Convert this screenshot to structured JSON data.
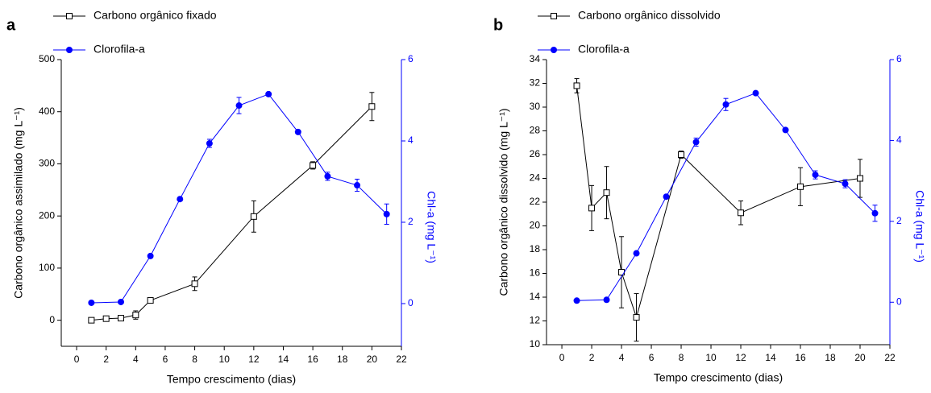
{
  "chart_data": [
    {
      "type": "line",
      "panel": "a",
      "x_label": "Tempo crescimento (dias)",
      "y_label": "Carbono orgânico assimilado (mg L⁻¹)",
      "y2_label": "Chl-a (mg L⁻¹)",
      "xlim": [
        -1.04,
        22
      ],
      "xticks": [
        0,
        2,
        4,
        6,
        8,
        10,
        12,
        14,
        16,
        18,
        20,
        22
      ],
      "ylim": [
        -50,
        500
      ],
      "yticks": [
        0,
        100,
        200,
        300,
        400,
        500
      ],
      "y2lim": [
        -1.05,
        6
      ],
      "y2ticks": [
        0,
        2,
        4,
        6
      ],
      "series": [
        {
          "name": "Carbono orgânico fixado",
          "color": "#000000",
          "marker": "square",
          "x": [
            1,
            2,
            3,
            4,
            5,
            8,
            12,
            16,
            20
          ],
          "values": [
            0,
            3,
            4,
            10,
            38,
            70,
            199,
            297,
            410
          ],
          "errors": [
            0,
            1,
            2,
            8,
            3,
            13,
            30,
            7,
            27
          ]
        },
        {
          "name": "Clorofila-a",
          "color": "#0000ff",
          "marker": "circle",
          "axis": "y2",
          "x": [
            1,
            3,
            5,
            7,
            9,
            11,
            13,
            15,
            17,
            19,
            21
          ],
          "values": [
            0.02,
            0.04,
            1.17,
            2.57,
            3.94,
            4.87,
            5.15,
            4.22,
            3.13,
            2.91,
            2.2
          ],
          "errors": [
            0,
            0,
            0,
            0,
            0.1,
            0.2,
            0,
            0,
            0.1,
            0.15,
            0.25
          ]
        }
      ]
    },
    {
      "type": "line",
      "panel": "b",
      "x_label": "Tempo crescimento (dias)",
      "y_label": "Carbono orgânico dissolvido (mg L⁻¹)",
      "y2_label": "Chl-a (mg L⁻¹)",
      "xlim": [
        -1.03,
        22
      ],
      "xticks": [
        0,
        2,
        4,
        6,
        8,
        10,
        12,
        14,
        16,
        18,
        20,
        22
      ],
      "ylim": [
        10,
        34
      ],
      "yticks": [
        10,
        12,
        14,
        16,
        18,
        20,
        22,
        24,
        26,
        28,
        30,
        32,
        34
      ],
      "y2lim": [
        -1.05,
        6
      ],
      "y2ticks": [
        0,
        2,
        4,
        6
      ],
      "series": [
        {
          "name": "Carbono orgânico dissolvido",
          "color": "#000000",
          "marker": "square",
          "x": [
            1,
            2,
            3,
            4,
            5,
            8,
            12,
            16,
            20
          ],
          "values": [
            31.8,
            21.5,
            22.8,
            16.1,
            12.3,
            26.0,
            21.1,
            23.3,
            24.0
          ],
          "errors": [
            0.6,
            1.9,
            2.2,
            3.0,
            2.0,
            0.3,
            1.0,
            1.6,
            1.6
          ]
        },
        {
          "name": "Clorofila-a",
          "color": "#0000ff",
          "marker": "circle",
          "axis": "y2",
          "x": [
            1,
            3,
            5,
            7,
            9,
            11,
            13,
            15,
            17,
            19,
            21
          ],
          "values": [
            0.04,
            0.06,
            1.21,
            2.61,
            3.96,
            4.89,
            5.17,
            4.26,
            3.15,
            2.93,
            2.2
          ],
          "errors": [
            0,
            0,
            0,
            0,
            0.1,
            0.15,
            0,
            0,
            0.1,
            0.1,
            0.2
          ]
        }
      ]
    }
  ]
}
